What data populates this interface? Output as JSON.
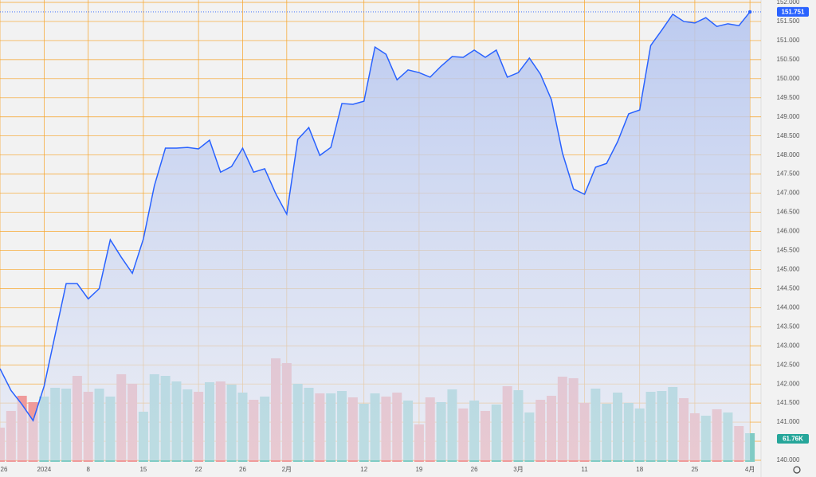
{
  "chart_data": {
    "type": "line",
    "categories": [
      "26",
      null,
      null,
      null,
      "2024",
      null,
      null,
      null,
      "8",
      null,
      null,
      null,
      null,
      "15",
      null,
      null,
      null,
      null,
      "22",
      null,
      null,
      null,
      "26",
      null,
      null,
      null,
      "2月",
      null,
      null,
      null,
      null,
      null,
      null,
      "12",
      null,
      null,
      null,
      null,
      "19",
      null,
      null,
      null,
      null,
      "26",
      null,
      null,
      null,
      "3月",
      null,
      null,
      null,
      null,
      null,
      "11",
      null,
      null,
      null,
      null,
      "18",
      null,
      null,
      null,
      null,
      "25",
      null,
      null,
      null,
      null,
      "4月"
    ],
    "series": [
      {
        "type": "line",
        "color": "#2962ff",
        "values": [
          142.4,
          141.83,
          141.46,
          141.04,
          141.94,
          143.29,
          144.63,
          144.63,
          144.23,
          144.5,
          145.78,
          145.32,
          144.9,
          145.8,
          147.2,
          148.18,
          148.18,
          148.2,
          148.16,
          148.39,
          147.55,
          147.7,
          148.18,
          147.55,
          147.64,
          146.99,
          146.45,
          148.41,
          148.72,
          147.99,
          148.2,
          149.35,
          149.33,
          149.41,
          150.83,
          150.64,
          149.97,
          150.23,
          150.16,
          150.04,
          150.33,
          150.58,
          150.56,
          150.75,
          150.56,
          150.75,
          150.04,
          150.16,
          150.54,
          150.12,
          149.45,
          148.05,
          147.11,
          146.97,
          147.68,
          147.78,
          148.35,
          149.08,
          149.18,
          150.87,
          151.27,
          151.69,
          151.5,
          151.46,
          151.6,
          151.37,
          151.44,
          151.39,
          151.751
        ]
      },
      {
        "type": "bar",
        "axis": "y2",
        "values": [
          73.8,
          109.8,
          142.4,
          128.7,
          140.7,
          159.6,
          157.9,
          185.3,
          151.0,
          157.9,
          140.7,
          188.8,
          168.2,
          108.1,
          188.8,
          185.3,
          173.3,
          156.2,
          151.0,
          171.6,
          173.3,
          166.5,
          149.3,
          133.8,
          140.7,
          223.1,
          212.8,
          168.2,
          159.6,
          147.6,
          147.6,
          152.7,
          139.0,
          125.3,
          147.6,
          140.7,
          149.3,
          132.1,
          80.7,
          139.0,
          128.7,
          156.2,
          115.0,
          132.1,
          109.8,
          123.6,
          163.0,
          154.4,
          106.4,
          133.8,
          142.4,
          183.6,
          180.2,
          127.0,
          157.9,
          125.3,
          149.3,
          127.0,
          115.0,
          151.0,
          152.7,
          161.3,
          137.3,
          104.7,
          99.5,
          113.3,
          106.4,
          77.2,
          61.76
        ],
        "value_labels": [
          null,
          null,
          null,
          null,
          null,
          null,
          null,
          null,
          null,
          null,
          null,
          null,
          null,
          null,
          null,
          null,
          null,
          null,
          null,
          null,
          null,
          null,
          null,
          null,
          null,
          null,
          null,
          null,
          null,
          null,
          null,
          null,
          null,
          null,
          null,
          null,
          null,
          null,
          null,
          null,
          null,
          null,
          null,
          null,
          null,
          null,
          null,
          null,
          null,
          null,
          null,
          null,
          null,
          null,
          null,
          null,
          null,
          null,
          null,
          null,
          null,
          null,
          null,
          null,
          null,
          null,
          null,
          null,
          "61.76K"
        ],
        "colors": [
          "#ef9a9a",
          "#ef9a9a",
          "#ef9a9a",
          "#ef9a9a",
          "#80cbc4",
          "#80cbc4",
          "#80cbc4",
          "#ef9a9a",
          "#ef9a9a",
          "#80cbc4",
          "#80cbc4",
          "#ef9a9a",
          "#ef9a9a",
          "#80cbc4",
          "#80cbc4",
          "#80cbc4",
          "#80cbc4",
          "#80cbc4",
          "#ef9a9a",
          "#80cbc4",
          "#ef9a9a",
          "#80cbc4",
          "#80cbc4",
          "#ef9a9a",
          "#80cbc4",
          "#ef9a9a",
          "#ef9a9a",
          "#80cbc4",
          "#80cbc4",
          "#ef9a9a",
          "#80cbc4",
          "#80cbc4",
          "#ef9a9a",
          "#80cbc4",
          "#80cbc4",
          "#ef9a9a",
          "#ef9a9a",
          "#80cbc4",
          "#ef9a9a",
          "#ef9a9a",
          "#80cbc4",
          "#80cbc4",
          "#ef9a9a",
          "#80cbc4",
          "#ef9a9a",
          "#80cbc4",
          "#ef9a9a",
          "#80cbc4",
          "#80cbc4",
          "#ef9a9a",
          "#ef9a9a",
          "#ef9a9a",
          "#ef9a9a",
          "#ef9a9a",
          "#80cbc4",
          "#80cbc4",
          "#80cbc4",
          "#80cbc4",
          "#80cbc4",
          "#80cbc4",
          "#80cbc4",
          "#80cbc4",
          "#ef9a9a",
          "#ef9a9a",
          "#80cbc4",
          "#ef9a9a",
          "#80cbc4",
          "#ef9a9a",
          "#80cbc4"
        ]
      }
    ],
    "ylim": [
      140,
      152
    ],
    "yticks": [
      {
        "value": 140,
        "label": "140.000"
      },
      {
        "value": 140.5,
        "label": "140.500"
      },
      {
        "value": 141,
        "label": "141.000"
      },
      {
        "value": 141.5,
        "label": "141.500"
      },
      {
        "value": 142,
        "label": "142.000"
      },
      {
        "value": 142.5,
        "label": "142.500"
      },
      {
        "value": 143,
        "label": "143.000"
      },
      {
        "value": 143.5,
        "label": "143.500"
      },
      {
        "value": 144,
        "label": "144.000"
      },
      {
        "value": 144.5,
        "label": "144.500"
      },
      {
        "value": 145,
        "label": "145.000"
      },
      {
        "value": 145.5,
        "label": "145.500"
      },
      {
        "value": 146,
        "label": "146.000"
      },
      {
        "value": 146.5,
        "label": "146.500"
      },
      {
        "value": 147,
        "label": "147.000"
      },
      {
        "value": 147.5,
        "label": "147.500"
      },
      {
        "value": 148,
        "label": "148.000"
      },
      {
        "value": 148.5,
        "label": "148.500"
      },
      {
        "value": 149,
        "label": "149.000"
      },
      {
        "value": 149.5,
        "label": "149.500"
      },
      {
        "value": 150,
        "label": "150.000"
      },
      {
        "value": 150.5,
        "label": "150.500"
      },
      {
        "value": 151,
        "label": "151.000"
      },
      {
        "value": 151.5,
        "label": "151.500"
      },
      {
        "value": 152,
        "label": "152.000"
      }
    ],
    "y2lim": [
      0,
      990
    ],
    "grid": true,
    "grid_color": "#f7a325"
  }
}
